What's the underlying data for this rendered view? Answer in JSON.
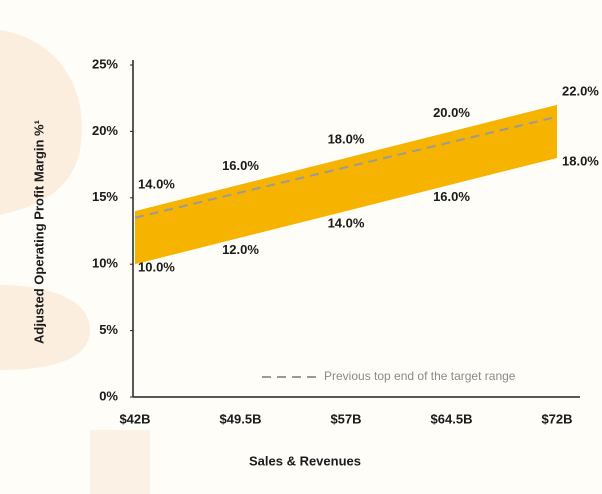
{
  "chart_data": {
    "type": "band",
    "x_label": "Sales & Revenues",
    "y_label": "Adjusted Operating Profit Margin %¹",
    "categories": [
      "$42B",
      "$49.5B",
      "$57B",
      "$64.5B",
      "$72B"
    ],
    "band": {
      "color": "#f6b400",
      "upper": {
        "values": [
          14,
          16,
          18,
          20,
          22
        ],
        "value_labels": [
          "14.0%",
          "16.0%",
          "18.0%",
          "20.0%",
          "22.0%"
        ]
      },
      "lower": {
        "values": [
          10,
          12,
          14,
          16,
          18
        ],
        "value_labels": [
          "10.0%",
          "12.0%",
          "14.0%",
          "16.0%",
          "18.0%"
        ]
      }
    },
    "series": [
      {
        "name": "Previous top end of the target range",
        "color": "#9a9a9a",
        "dashed": true,
        "values": [
          13.5,
          15.4,
          17.3,
          19.2,
          21.1
        ]
      }
    ],
    "ylim": [
      0,
      25
    ],
    "yticks": [
      {
        "value": 0,
        "label": "0%"
      },
      {
        "value": 5,
        "label": "5%"
      },
      {
        "value": 10,
        "label": "10%"
      },
      {
        "value": 15,
        "label": "15%"
      },
      {
        "value": 20,
        "label": "20%"
      },
      {
        "value": 25,
        "label": "25%"
      }
    ],
    "grid": false,
    "legend": "bottom-right"
  }
}
